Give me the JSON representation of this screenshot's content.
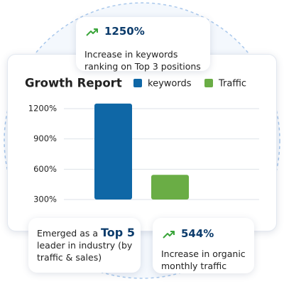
{
  "chart_data": {
    "type": "bar",
    "title": "Growth Report",
    "categories": [
      null
    ],
    "series": [
      {
        "name": "keywords",
        "color": "#0f67a6",
        "values": [
          1250
        ]
      },
      {
        "name": "Traffic",
        "color": "#6aad45",
        "values": [
          544
        ]
      }
    ],
    "ylim": [
      300,
      1300
    ],
    "yticks": [
      {
        "value": 300,
        "label": "300%"
      },
      {
        "value": 600,
        "label": "600%"
      },
      {
        "value": 900,
        "label": "900%"
      },
      {
        "value": 1200,
        "label": "1200%"
      }
    ],
    "grid": true,
    "legend": "top"
  },
  "callouts": [
    {
      "value": "1250%",
      "text": "Increase in keywords ranking on Top 3 positions"
    },
    {
      "value": "544%",
      "text": "Increase in organic monthly traffic"
    }
  ],
  "rank_callout": {
    "prefix": "Emerged as a",
    "highlight": "Top 5",
    "suffix": "leader in industry (by traffic & sales)"
  }
}
